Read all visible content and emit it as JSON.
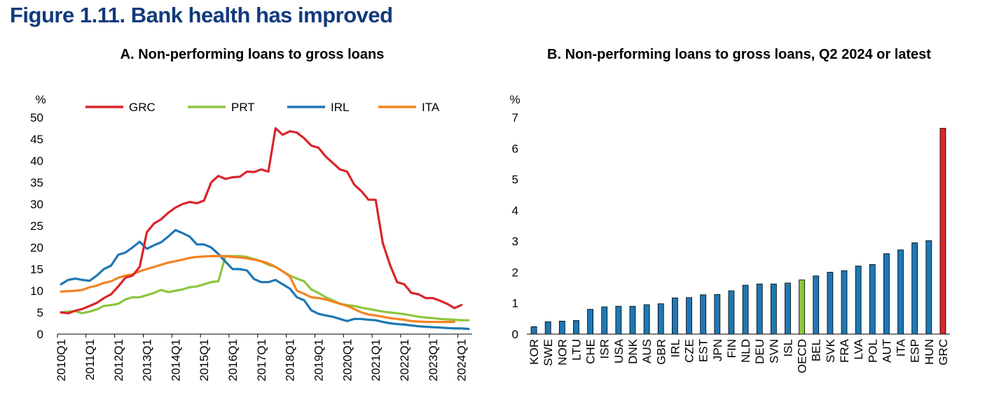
{
  "figure_title": "Figure 1.11. Bank health has improved",
  "colors": {
    "GRC": "#d9252a",
    "PRT": "#8cc63f",
    "IRL": "#1f77b4",
    "ITA": "#f58220",
    "bar": "#1f77b4",
    "bar_oecd": "#8cc63f",
    "bar_grc": "#d9252a",
    "title": "#123a7c"
  },
  "chart_data": [
    {
      "type": "line",
      "title": "A. Non-performing loans to gross loans",
      "ylabel": "%",
      "ylim": [
        0,
        50
      ],
      "yticks": [
        "0",
        "5",
        "10",
        "15",
        "20",
        "25",
        "30",
        "35",
        "40",
        "45",
        "50"
      ],
      "xlabels": [
        "2010Q1",
        "2011Q1",
        "2012Q1",
        "2013Q1",
        "2014Q1",
        "2015Q1",
        "2016Q1",
        "2017Q1",
        "2018Q1",
        "2019Q1",
        "2020Q1",
        "2021Q1",
        "2022Q1",
        "2023Q1",
        "2024Q1"
      ],
      "legend_position": "top",
      "grid": false,
      "x_start": "2010Q1",
      "x_end": "2024Q2",
      "series": [
        {
          "name": "GRC",
          "values": [
            5.0,
            4.8,
            5.4,
            5.8,
            6.5,
            7.2,
            8.3,
            9.2,
            11.0,
            13.0,
            13.5,
            15.5,
            23.5,
            25.5,
            26.5,
            28.0,
            29.2,
            30.0,
            30.5,
            30.2,
            30.8,
            35.0,
            36.5,
            35.8,
            36.2,
            36.3,
            37.5,
            37.4,
            38.0,
            37.5,
            47.5,
            46.0,
            46.8,
            46.5,
            45.2,
            43.5,
            43.0,
            41.0,
            39.5,
            38.0,
            37.5,
            34.5,
            33.0,
            31.0,
            31.0,
            21.0,
            16.0,
            12.0,
            11.5,
            9.5,
            9.2,
            8.3,
            8.3,
            7.7,
            7.0,
            6.0,
            6.7
          ]
        },
        {
          "name": "PRT",
          "values": [
            5.0,
            5.2,
            5.3,
            4.8,
            5.2,
            5.7,
            6.5,
            6.7,
            7.0,
            8.0,
            8.5,
            8.5,
            9.0,
            9.5,
            10.2,
            9.7,
            10.0,
            10.3,
            10.8,
            11.0,
            11.5,
            12.0,
            12.2,
            18.0,
            18.0,
            18.0,
            17.8,
            17.3,
            16.8,
            16.0,
            15.5,
            14.5,
            13.5,
            12.8,
            12.2,
            10.3,
            9.5,
            8.5,
            7.8,
            7.0,
            6.7,
            6.5,
            6.1,
            5.8,
            5.5,
            5.2,
            5.0,
            4.8,
            4.6,
            4.3,
            4.0,
            3.8,
            3.7,
            3.5,
            3.4,
            3.3,
            3.2,
            3.2
          ]
        },
        {
          "name": "IRL",
          "values": [
            11.5,
            12.5,
            12.8,
            12.5,
            12.3,
            13.5,
            15.0,
            15.8,
            18.3,
            18.8,
            20.0,
            21.3,
            19.7,
            20.5,
            21.2,
            22.5,
            24.0,
            23.3,
            22.5,
            20.7,
            20.7,
            20.0,
            18.5,
            16.7,
            15.0,
            15.0,
            14.7,
            12.7,
            12.0,
            12.0,
            12.5,
            11.5,
            10.5,
            8.5,
            7.8,
            5.5,
            4.7,
            4.3,
            4.0,
            3.5,
            3.0,
            3.5,
            3.5,
            3.3,
            3.2,
            2.8,
            2.5,
            2.3,
            2.2,
            2.0,
            1.8,
            1.7,
            1.6,
            1.5,
            1.4,
            1.3,
            1.3,
            1.2
          ]
        },
        {
          "name": "ITA",
          "values": [
            9.8,
            9.9,
            10.0,
            10.2,
            10.8,
            11.2,
            11.8,
            12.2,
            13.0,
            13.5,
            13.8,
            14.5,
            15.0,
            15.5,
            16.0,
            16.5,
            16.8,
            17.2,
            17.6,
            17.8,
            17.9,
            18.0,
            18.0,
            18.0,
            17.8,
            17.7,
            17.5,
            17.2,
            16.8,
            16.3,
            15.5,
            14.5,
            13.3,
            10.0,
            9.3,
            8.5,
            8.3,
            8.0,
            7.5,
            7.0,
            6.5,
            5.8,
            5.0,
            4.5,
            4.3,
            4.0,
            3.7,
            3.5,
            3.3,
            3.0,
            2.9,
            2.8,
            2.8,
            2.8,
            2.8,
            2.8
          ]
        }
      ]
    },
    {
      "type": "bar",
      "title": "B. Non-performing loans to gross loans, Q2 2024 or latest",
      "ylabel": "%",
      "ylim": [
        0,
        7
      ],
      "yticks": [
        "0",
        "1",
        "2",
        "3",
        "4",
        "5",
        "6",
        "7"
      ],
      "grid": false,
      "categories": [
        "KOR",
        "SWE",
        "NOR",
        "LTU",
        "CHE",
        "ISR",
        "USA",
        "DNK",
        "AUS",
        "GBR",
        "IRL",
        "CZE",
        "EST",
        "JPN",
        "FIN",
        "NLD",
        "DEU",
        "SVN",
        "ISL",
        "OECD",
        "BEL",
        "SVK",
        "FRA",
        "LVA",
        "POL",
        "AUT",
        "ITA",
        "ESP",
        "HUN",
        "GRC"
      ],
      "values": [
        0.24,
        0.4,
        0.42,
        0.44,
        0.8,
        0.88,
        0.9,
        0.9,
        0.95,
        0.98,
        1.17,
        1.18,
        1.27,
        1.28,
        1.4,
        1.58,
        1.62,
        1.62,
        1.65,
        1.75,
        1.88,
        2.0,
        2.05,
        2.2,
        2.25,
        2.6,
        2.72,
        2.95,
        3.02,
        6.65
      ],
      "highlights": {
        "OECD": "#8cc63f",
        "GRC": "#d9252a"
      }
    }
  ]
}
